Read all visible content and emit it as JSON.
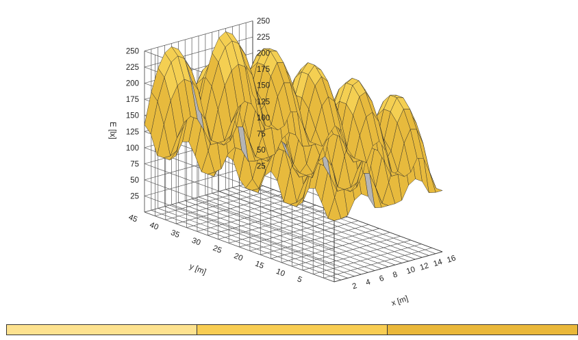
{
  "chart_data": {
    "type": "surface",
    "xlabel": "x [m]",
    "ylabel": "y [m]",
    "zlabel": "E [lx]",
    "xlim": [
      0,
      16
    ],
    "ylim": [
      0,
      45
    ],
    "zlim": [
      0,
      250
    ],
    "x_ticks": [
      "2",
      "4",
      "6",
      "8",
      "10",
      "12",
      "14",
      "16"
    ],
    "y_ticks": [
      "5",
      "10",
      "15",
      "20",
      "25",
      "30",
      "35",
      "40",
      "45"
    ],
    "z_ticks_left": [
      "25",
      "50",
      "75",
      "100",
      "125",
      "150",
      "175",
      "200",
      "225",
      "250"
    ],
    "z_ticks_right": [
      "25",
      "50",
      "75",
      "100",
      "125",
      "150",
      "175",
      "200",
      "225",
      "250"
    ],
    "luminaire_x": [
      4,
      12
    ],
    "luminaire_y": [
      5,
      15,
      25,
      35,
      45
    ],
    "peak_illuminance": 245,
    "min_illuminance": 95,
    "colors": {
      "surface_top": "#f4cf52",
      "surface_mid": "#e7ba3d",
      "surface_under": "#b5b5b5",
      "grid": "#555555"
    },
    "colorbar": {
      "colors": [
        "#fde28f",
        "#f8cd53",
        "#eab83a"
      ],
      "labels": [
        "",
        "",
        "",
        ""
      ]
    }
  }
}
